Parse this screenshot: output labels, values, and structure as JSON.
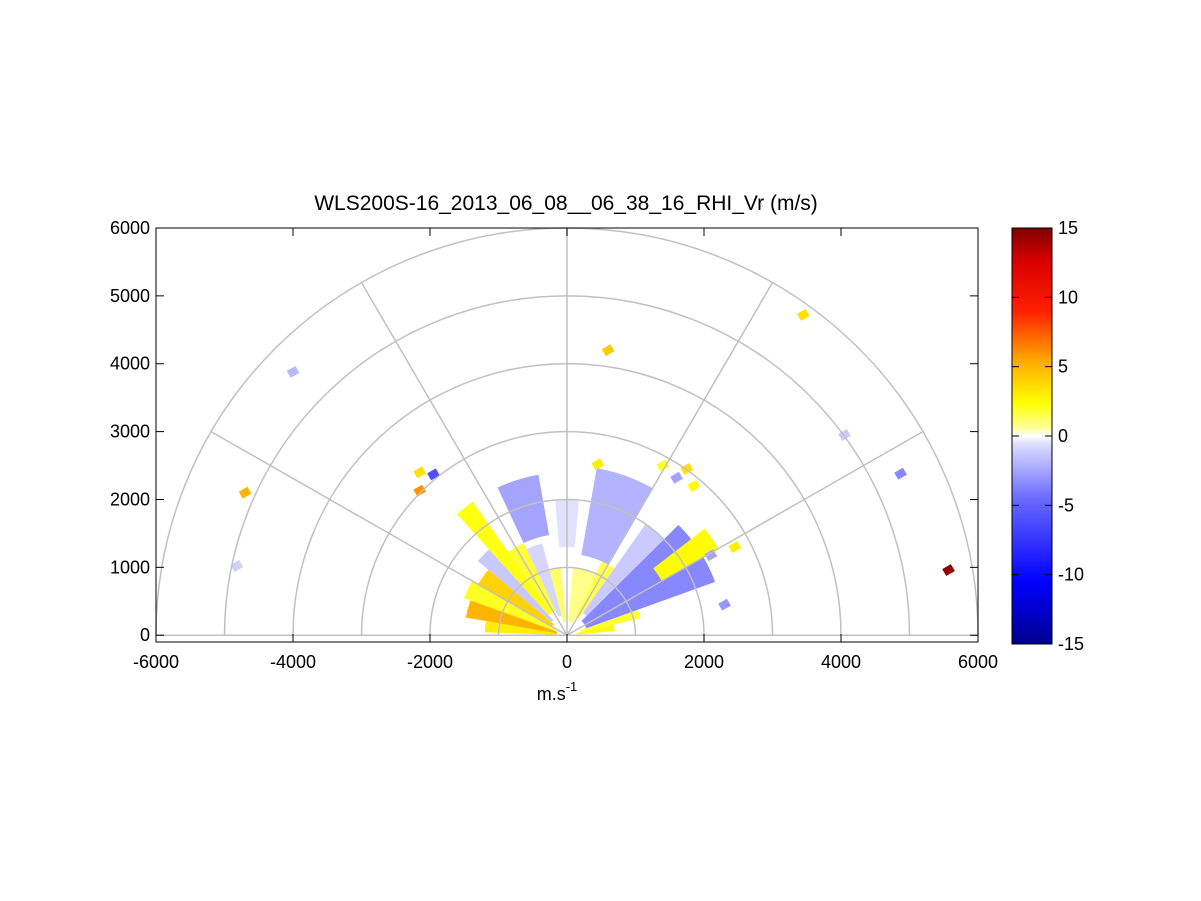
{
  "chart_data": {
    "type": "heatmap",
    "subtype": "polar-rhi-sector",
    "title": "WLS200S-16_2013_06_08__06_38_16_RHI_Vr (m/s)",
    "xlabel": "m.s",
    "xlabel_superscript": "-1",
    "xlim": [
      -6000,
      6000
    ],
    "ylim": [
      -100,
      6000
    ],
    "x_ticks": [
      -6000,
      -4000,
      -2000,
      0,
      2000,
      4000,
      6000
    ],
    "y_ticks": [
      0,
      1000,
      2000,
      3000,
      4000,
      5000,
      6000
    ],
    "x_tick_labels": [
      "-6000",
      "-4000",
      "-2000",
      "0",
      "2000",
      "4000",
      "6000"
    ],
    "y_tick_labels": [
      "0",
      "1000",
      "2000",
      "3000",
      "4000",
      "5000",
      "6000"
    ],
    "polar_grid": {
      "range_rings": [
        1000,
        2000,
        3000,
        4000,
        5000,
        6000
      ],
      "spoke_angles_deg": [
        0,
        30,
        60,
        90,
        120,
        150,
        180
      ]
    },
    "colorbar": {
      "range": [
        -15,
        15
      ],
      "ticks": [
        15,
        10,
        5,
        0,
        -5,
        -10,
        -15
      ],
      "tick_labels": [
        "15",
        "10",
        "5",
        "0",
        "-5",
        "-10",
        "-15"
      ],
      "colormap": "blue-white-yellow-red"
    },
    "sectors": [
      {
        "az_from": 5,
        "az_to": 13,
        "r_from": 150,
        "r_to": 700,
        "vr": 2.5
      },
      {
        "az_from": 13,
        "az_to": 20,
        "r_from": 200,
        "r_to": 1100,
        "vr": 1.8
      },
      {
        "az_from": 20,
        "az_to": 45,
        "r_from": 300,
        "r_to": 2300,
        "vr": -3.5
      },
      {
        "az_from": 45,
        "az_to": 55,
        "r_from": 400,
        "r_to": 2000,
        "vr": -1.2
      },
      {
        "az_from": 30,
        "az_to": 38,
        "r_from": 1600,
        "r_to": 2550,
        "vr": 2.5
      },
      {
        "az_from": 55,
        "az_to": 65,
        "r_from": 300,
        "r_to": 1200,
        "vr": 1.5
      },
      {
        "az_from": 65,
        "az_to": 85,
        "r_from": 200,
        "r_to": 1000,
        "vr": 0.8
      },
      {
        "az_from": 60,
        "az_to": 80,
        "r_from": 1200,
        "r_to": 2500,
        "vr": -2.0
      },
      {
        "az_from": 85,
        "az_to": 95,
        "r_from": 1300,
        "r_to": 2000,
        "vr": -0.5
      },
      {
        "az_from": 95,
        "az_to": 105,
        "r_from": 200,
        "r_to": 1000,
        "vr": 1.2
      },
      {
        "az_from": 105,
        "az_to": 115,
        "r_from": 300,
        "r_to": 1400,
        "vr": -0.8
      },
      {
        "az_from": 100,
        "az_to": 115,
        "r_from": 1500,
        "r_to": 2400,
        "vr": -2.5
      },
      {
        "az_from": 115,
        "az_to": 125,
        "r_from": 400,
        "r_to": 1500,
        "vr": 1.8
      },
      {
        "az_from": 125,
        "az_to": 132,
        "r_from": 400,
        "r_to": 2400,
        "vr": 2.2
      },
      {
        "az_from": 132,
        "az_to": 140,
        "r_from": 300,
        "r_to": 1700,
        "vr": -1.3
      },
      {
        "az_from": 140,
        "az_to": 150,
        "r_from": 250,
        "r_to": 1500,
        "vr": 4.0
      },
      {
        "az_from": 150,
        "az_to": 160,
        "r_from": 200,
        "r_to": 1600,
        "vr": 2.0
      },
      {
        "az_from": 160,
        "az_to": 170,
        "r_from": 150,
        "r_to": 1500,
        "vr": 5.0
      },
      {
        "az_from": 170,
        "az_to": 178,
        "r_from": 150,
        "r_to": 1200,
        "vr": 3.0
      }
    ],
    "points": [
      {
        "x": -4700,
        "y": 2100,
        "vr": 5.0
      },
      {
        "x": -4820,
        "y": 1020,
        "vr": -1.0
      },
      {
        "x": -4000,
        "y": 3880,
        "vr": -1.8
      },
      {
        "x": -2150,
        "y": 2400,
        "vr": 3.5
      },
      {
        "x": -1950,
        "y": 2370,
        "vr": -6.0
      },
      {
        "x": -2150,
        "y": 2130,
        "vr": 6.0
      },
      {
        "x": 600,
        "y": 4200,
        "vr": 4.2
      },
      {
        "x": 3450,
        "y": 4720,
        "vr": 3.5
      },
      {
        "x": 4050,
        "y": 2950,
        "vr": -1.2
      },
      {
        "x": 4870,
        "y": 2380,
        "vr": -3.5
      },
      {
        "x": 5570,
        "y": 960,
        "vr": 14.5
      },
      {
        "x": 2450,
        "y": 1300,
        "vr": 3.0
      },
      {
        "x": 2300,
        "y": 450,
        "vr": -3.0
      },
      {
        "x": 1750,
        "y": 2450,
        "vr": 3.5
      },
      {
        "x": 1850,
        "y": 2200,
        "vr": 2.5
      },
      {
        "x": 1600,
        "y": 2320,
        "vr": -2.5
      },
      {
        "x": 1400,
        "y": 2500,
        "vr": 2.0
      },
      {
        "x": 450,
        "y": 2520,
        "vr": 3.0
      },
      {
        "x": 2100,
        "y": 1180,
        "vr": -2.5
      }
    ]
  }
}
